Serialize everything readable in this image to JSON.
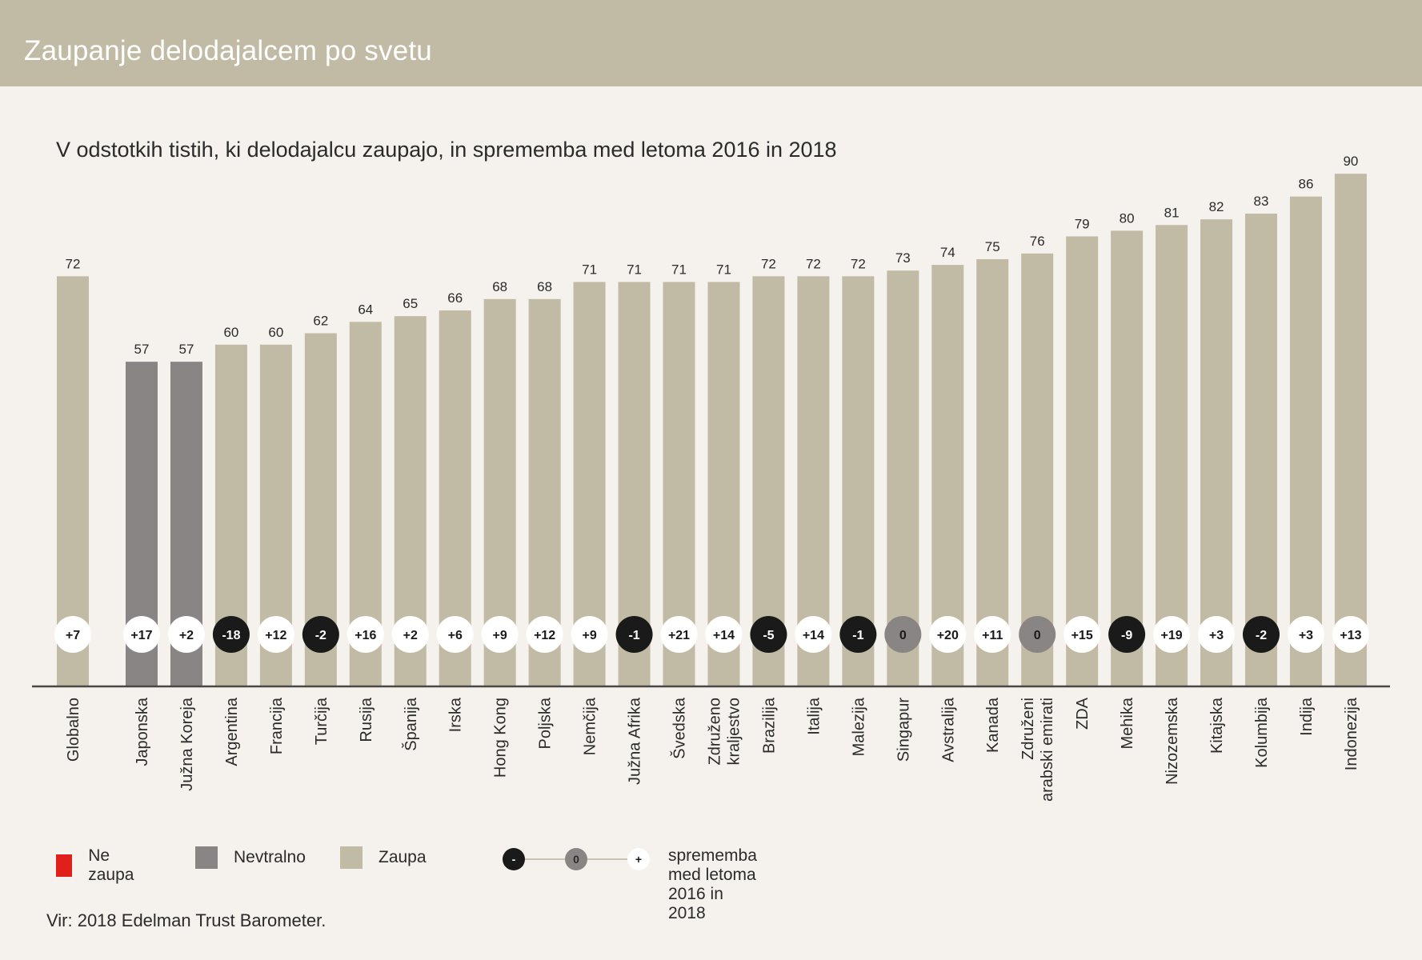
{
  "header": {
    "title": "Zaupanje delodajalcem po svetu"
  },
  "subtitle": "V odstotkih tistih, ki delodajalcu zaupajo, in sprememba med letoma 2016 in 2018",
  "colors": {
    "header_bg": "#c1baa4",
    "trust": "#c1baa4",
    "neutral": "#8a8585",
    "distrust": "#e0201b",
    "change_negative": "#1a1a1a",
    "change_zero": "#8a8585",
    "change_positive": "#ffffff",
    "axis": "#4a4744"
  },
  "chart_data": {
    "type": "bar",
    "title": "Zaupanje delodajalcem po svetu",
    "subtitle": "V odstotkih tistih, ki delodajalcu zaupajo, in sprememba med letoma 2016 in 2018",
    "xlabel": "",
    "ylabel": "",
    "ylim": [
      0,
      90
    ],
    "grid": false,
    "legend_position": "bottom-left",
    "categories": [
      "Globalno",
      "Japonska",
      "Južna Koreja",
      "Argentina",
      "Francija",
      "Turčija",
      "Rusija",
      "Španija",
      "Irska",
      "Hong Kong",
      "Poljska",
      "Nemčija",
      "Južna Afrika",
      "Švedska",
      "Združeno kraljestvo",
      "Brazilija",
      "Italija",
      "Malezija",
      "Singapur",
      "Avstralija",
      "Kanada",
      "Združeni arabski emirati",
      "ZDA",
      "Mehika",
      "Nizozemska",
      "Kitajska",
      "Kolumbija",
      "Indija",
      "Indonezija"
    ],
    "category_lines": [
      [
        "Globalno"
      ],
      [
        "Japonska"
      ],
      [
        "Južna Koreja"
      ],
      [
        "Argentina"
      ],
      [
        "Francija"
      ],
      [
        "Turčija"
      ],
      [
        "Rusija"
      ],
      [
        "Španija"
      ],
      [
        "Irska"
      ],
      [
        "Hong Kong"
      ],
      [
        "Poljska"
      ],
      [
        "Nemčija"
      ],
      [
        "Južna Afrika"
      ],
      [
        "Švedska"
      ],
      [
        "Združeno",
        "kraljestvo"
      ],
      [
        "Brazilija"
      ],
      [
        "Italija"
      ],
      [
        "Malezija"
      ],
      [
        "Singapur"
      ],
      [
        "Avstralija"
      ],
      [
        "Kanada"
      ],
      [
        "Združeni",
        "arabski emirati"
      ],
      [
        "ZDA"
      ],
      [
        "Mehika"
      ],
      [
        "Nizozemska"
      ],
      [
        "Kitajska"
      ],
      [
        "Kolumbija"
      ],
      [
        "Indija"
      ],
      [
        "Indonezija"
      ]
    ],
    "series": [
      {
        "name": "Zaupanje (%)",
        "values": [
          72,
          57,
          57,
          60,
          60,
          62,
          64,
          65,
          66,
          68,
          68,
          71,
          71,
          71,
          71,
          72,
          72,
          72,
          73,
          74,
          75,
          76,
          79,
          80,
          81,
          82,
          83,
          86,
          90
        ],
        "value_labels": [
          "72",
          "57",
          "57",
          "60",
          "60",
          "62",
          "64",
          "65",
          "66",
          "68",
          "68",
          "71",
          "71",
          "71",
          "71",
          "72",
          "72",
          "72",
          "73",
          "74",
          "75",
          "76",
          "79",
          "80",
          "81",
          "82",
          "83",
          "86",
          "90"
        ],
        "category_class": [
          "trust",
          "neutral",
          "neutral",
          "trust",
          "trust",
          "trust",
          "trust",
          "trust",
          "trust",
          "trust",
          "trust",
          "trust",
          "trust",
          "trust",
          "trust",
          "trust",
          "trust",
          "trust",
          "trust",
          "trust",
          "trust",
          "trust",
          "trust",
          "trust",
          "trust",
          "trust",
          "trust",
          "trust",
          "trust"
        ]
      },
      {
        "name": "Sprememba 2016–2018",
        "values": [
          7,
          17,
          2,
          -18,
          12,
          -2,
          16,
          2,
          6,
          9,
          12,
          9,
          -1,
          21,
          14,
          -5,
          14,
          -1,
          0,
          20,
          11,
          0,
          15,
          -9,
          19,
          3,
          -2,
          3,
          13
        ],
        "value_labels": [
          "+7",
          "+17",
          "+2",
          "-18",
          "+12",
          "-2",
          "+16",
          "+2",
          "+6",
          "+9",
          "+12",
          "+9",
          "-1",
          "+21",
          "+14",
          "-5",
          "+14",
          "-1",
          "0",
          "+20",
          "+11",
          "0",
          "+15",
          "-9",
          "+19",
          "+3",
          "-2",
          "+3",
          "+13"
        ]
      }
    ],
    "legend": [
      {
        "label": "Ne zaupa",
        "class": "distrust"
      },
      {
        "label": "Nevtralno",
        "class": "neutral"
      },
      {
        "label": "Zaupa",
        "class": "trust"
      }
    ],
    "change_legend": {
      "symbols": [
        "-",
        "0",
        "+"
      ],
      "label": "sprememba med letoma 2016 in 2018"
    }
  },
  "legend": {
    "distrust_label": "Ne zaupa",
    "neutral_label": "Nevtralno",
    "trust_label": "Zaupa",
    "change_label": "sprememba med letoma 2016 in 2018",
    "change_neg": "-",
    "change_zero": "0",
    "change_pos": "+"
  },
  "source": "Vir: 2018 Edelman Trust Barometer."
}
